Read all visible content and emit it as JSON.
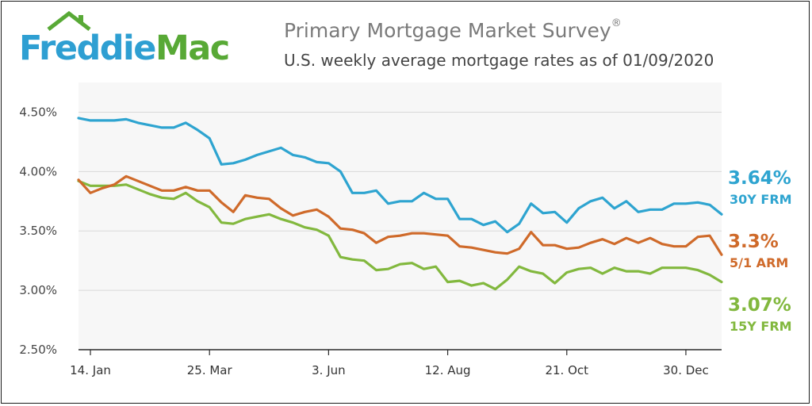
{
  "header": {
    "logo_part1": "Freddie",
    "logo_part2": "Mac",
    "title": "Primary Mortgage Market Survey",
    "title_mark": "®",
    "subtitle": "U.S. weekly average mortgage rates as of 01/09/2020"
  },
  "colors": {
    "frm30": "#2ea4d0",
    "arm51": "#cf6a2a",
    "frm15": "#82b83e",
    "logo_blue": "#2e9fd2",
    "logo_green": "#58a936"
  },
  "chart_data": {
    "type": "line",
    "title": "Primary Mortgage Market Survey",
    "subtitle": "U.S. weekly average mortgage rates as of 01/09/2020",
    "ylim": [
      2.5,
      4.75
    ],
    "y_ticks": [
      "4.50%",
      "4.00%",
      "3.50%",
      "3.00%",
      "2.50%"
    ],
    "y_tick_values": [
      4.5,
      4.0,
      3.5,
      3.0,
      2.5
    ],
    "x_ticks": [
      "14. Jan",
      "25. Mar",
      "3. Jun",
      "12. Aug",
      "21. Oct",
      "30. Dec"
    ],
    "x_tick_index": [
      1,
      11,
      21,
      31,
      41,
      51
    ],
    "grid": true,
    "series": [
      {
        "name": "30Y FRM",
        "end_value": "3.64%",
        "values": [
          4.45,
          4.43,
          4.43,
          4.43,
          4.44,
          4.41,
          4.39,
          4.37,
          4.37,
          4.41,
          4.35,
          4.28,
          4.06,
          4.07,
          4.1,
          4.14,
          4.17,
          4.2,
          4.14,
          4.12,
          4.08,
          4.07,
          4.0,
          3.82,
          3.82,
          3.84,
          3.73,
          3.75,
          3.75,
          3.82,
          3.77,
          3.77,
          3.6,
          3.6,
          3.55,
          3.58,
          3.49,
          3.56,
          3.73,
          3.65,
          3.66,
          3.57,
          3.69,
          3.75,
          3.78,
          3.69,
          3.75,
          3.66,
          3.68,
          3.68,
          3.73,
          3.73,
          3.74,
          3.72,
          3.64
        ]
      },
      {
        "name": "5/1 ARM",
        "end_value": "3.3%",
        "values": [
          3.93,
          3.82,
          3.86,
          3.89,
          3.96,
          3.92,
          3.88,
          3.84,
          3.84,
          3.87,
          3.84,
          3.84,
          3.74,
          3.66,
          3.8,
          3.78,
          3.77,
          3.69,
          3.63,
          3.66,
          3.68,
          3.62,
          3.52,
          3.51,
          3.48,
          3.4,
          3.45,
          3.46,
          3.48,
          3.48,
          3.47,
          3.46,
          3.37,
          3.36,
          3.34,
          3.32,
          3.31,
          3.35,
          3.49,
          3.38,
          3.38,
          3.35,
          3.36,
          3.4,
          3.43,
          3.39,
          3.44,
          3.4,
          3.44,
          3.39,
          3.37,
          3.37,
          3.45,
          3.46,
          3.3
        ]
      },
      {
        "name": "15Y FRM",
        "end_value": "3.07%",
        "values": [
          3.92,
          3.88,
          3.88,
          3.88,
          3.89,
          3.85,
          3.81,
          3.78,
          3.77,
          3.82,
          3.75,
          3.7,
          3.57,
          3.56,
          3.6,
          3.62,
          3.64,
          3.6,
          3.57,
          3.53,
          3.51,
          3.46,
          3.28,
          3.26,
          3.25,
          3.17,
          3.18,
          3.22,
          3.23,
          3.18,
          3.2,
          3.07,
          3.08,
          3.04,
          3.06,
          3.01,
          3.09,
          3.2,
          3.16,
          3.14,
          3.06,
          3.15,
          3.18,
          3.19,
          3.14,
          3.19,
          3.16,
          3.16,
          3.14,
          3.19,
          3.19,
          3.19,
          3.17,
          3.13,
          3.07
        ]
      }
    ]
  }
}
